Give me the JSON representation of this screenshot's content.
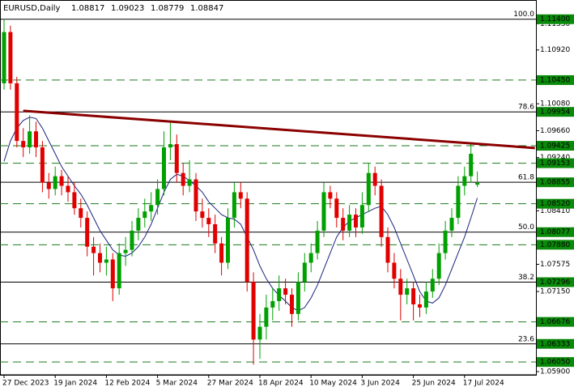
{
  "chart_data": {
    "type": "candlestick",
    "title": "EURUSD,Daily",
    "categories": [
      "27 Dec 2023",
      null,
      null,
      null,
      null,
      null,
      null,
      null,
      "19 Jan 2024",
      null,
      null,
      null,
      null,
      null,
      null,
      null,
      "12 Feb 2024",
      null,
      null,
      null,
      null,
      null,
      null,
      null,
      "5 Mar 2024",
      null,
      null,
      null,
      null,
      null,
      null,
      null,
      "27 Mar 2024",
      null,
      null,
      null,
      null,
      null,
      null,
      null,
      "18 Apr 2024",
      null,
      null,
      null,
      null,
      null,
      null,
      null,
      "10 May 2024",
      null,
      null,
      null,
      null,
      null,
      null,
      null,
      "3 Jun 2024",
      null,
      null,
      null,
      null,
      null,
      null,
      null,
      "25 Jun 2024",
      null,
      null,
      null,
      null,
      null,
      null,
      null,
      "17 Jul 2024",
      null,
      null
    ],
    "open": [
      1.104,
      1.112,
      1.104,
      1.095,
      1.094,
      1.0965,
      1.094,
      1.0885,
      1.0875,
      1.0895,
      1.088,
      1.087,
      1.0845,
      1.083,
      1.0785,
      1.0775,
      1.076,
      1.0765,
      1.072,
      1.0775,
      1.078,
      1.081,
      1.083,
      1.084,
      1.085,
      1.0875,
      1.094,
      1.0945,
      1.09,
      1.088,
      1.089,
      1.084,
      1.083,
      1.082,
      1.079,
      1.076,
      1.083,
      1.087,
      1.086,
      1.073,
      1.064,
      1.066,
      1.069,
      1.07,
      1.072,
      1.071,
      1.068,
      1.073,
      1.076,
      1.0775,
      1.081,
      1.087,
      1.086,
      1.083,
      1.081,
      1.0835,
      1.0815,
      1.085,
      1.09,
      1.088,
      1.08,
      1.076,
      1.0735,
      1.071,
      1.072,
      1.0695,
      1.069,
      1.0715,
      1.0735,
      1.0775,
      1.081,
      1.083,
      1.088,
      1.0895,
      1.08817
    ],
    "high": [
      1.114,
      1.113,
      1.105,
      1.097,
      1.099,
      1.098,
      1.095,
      1.09,
      1.091,
      1.0905,
      1.0895,
      1.0885,
      1.086,
      1.084,
      1.08,
      1.079,
      1.0785,
      1.0775,
      1.079,
      1.08,
      1.0825,
      1.0845,
      1.086,
      1.087,
      1.089,
      1.0965,
      1.098,
      1.096,
      1.0915,
      1.092,
      1.09,
      1.086,
      1.0845,
      1.0835,
      1.08,
      1.0845,
      1.0885,
      1.0885,
      1.087,
      1.0745,
      1.068,
      1.071,
      1.072,
      1.074,
      1.0735,
      1.072,
      1.0745,
      1.0775,
      1.079,
      1.0825,
      1.0885,
      1.088,
      1.087,
      1.0845,
      1.085,
      1.0845,
      1.087,
      1.0915,
      1.091,
      1.089,
      1.0815,
      1.0775,
      1.075,
      1.0735,
      1.073,
      1.071,
      1.073,
      1.075,
      1.079,
      1.0825,
      1.0845,
      1.0895,
      1.091,
      1.0945,
      1.09023
    ],
    "low": [
      1.103,
      1.103,
      1.094,
      1.0925,
      1.093,
      1.0925,
      1.087,
      1.086,
      1.0865,
      1.0865,
      1.0855,
      1.0835,
      1.0815,
      1.077,
      1.074,
      1.0745,
      1.074,
      1.07,
      1.071,
      1.0755,
      1.077,
      1.0795,
      1.0815,
      1.0825,
      1.0835,
      1.0865,
      1.092,
      1.0885,
      1.0865,
      1.087,
      1.0825,
      1.0815,
      1.08,
      1.0775,
      1.074,
      1.075,
      1.0815,
      1.0845,
      1.0715,
      1.0601,
      1.061,
      1.064,
      1.067,
      1.0685,
      1.0695,
      1.066,
      1.067,
      1.0715,
      1.0745,
      1.0765,
      1.08,
      1.0845,
      1.0815,
      1.0795,
      1.08,
      1.08,
      1.0805,
      1.084,
      1.0865,
      1.0785,
      1.0745,
      1.072,
      1.067,
      1.0695,
      1.067,
      1.0675,
      1.068,
      1.0705,
      1.0725,
      1.0765,
      1.08,
      1.082,
      1.0865,
      1.0885,
      1.08779
    ],
    "close": [
      1.112,
      1.104,
      1.095,
      1.094,
      1.0965,
      1.094,
      1.0885,
      1.0875,
      1.0895,
      1.088,
      1.087,
      1.0845,
      1.083,
      1.0785,
      1.0775,
      1.076,
      1.0765,
      1.072,
      1.0775,
      1.078,
      1.081,
      1.083,
      1.084,
      1.085,
      1.0875,
      1.094,
      1.0945,
      1.09,
      1.088,
      1.089,
      1.084,
      1.083,
      1.082,
      1.079,
      1.076,
      1.083,
      1.087,
      1.086,
      1.073,
      1.064,
      1.066,
      1.069,
      1.07,
      1.072,
      1.071,
      1.068,
      1.073,
      1.076,
      1.0775,
      1.081,
      1.087,
      1.086,
      1.083,
      1.081,
      1.0835,
      1.0815,
      1.085,
      1.09,
      1.088,
      1.08,
      1.076,
      1.0735,
      1.071,
      1.072,
      1.0695,
      1.069,
      1.0715,
      1.0735,
      1.0775,
      1.081,
      1.083,
      1.088,
      1.0895,
      1.093,
      1.08847
    ],
    "up_color": "#00a000",
    "down_color": "#e00000",
    "ma": {
      "color": "#1a237e",
      "values": [
        1.0918,
        1.095,
        1.097,
        1.0982,
        1.0987,
        1.0985,
        1.097,
        1.095,
        1.093,
        1.091,
        1.0895,
        1.088,
        1.0867,
        1.085,
        1.083,
        1.081,
        1.0795,
        1.078,
        1.0772,
        1.077,
        1.0775,
        1.0785,
        1.08,
        1.082,
        1.0845,
        1.087,
        1.089,
        1.0898,
        1.0895,
        1.0888,
        1.088,
        1.087,
        1.0855,
        1.0845,
        1.0835,
        1.083,
        1.0828,
        1.082,
        1.08,
        1.078,
        1.0755,
        1.0735,
        1.072,
        1.0709,
        1.07,
        1.069,
        1.0685,
        1.069,
        1.0705,
        1.0725,
        1.075,
        1.0775,
        1.08,
        1.0815,
        1.0825,
        1.083,
        1.0835,
        1.084,
        1.0845,
        1.0848,
        1.0835,
        1.0815,
        1.079,
        1.0765,
        1.074,
        1.0715,
        1.07,
        1.0697,
        1.0705,
        1.0725,
        1.075,
        1.0775,
        1.08,
        1.083,
        1.0861
      ]
    },
    "trendline": {
      "color": "#8b0000",
      "x": [
        3,
        83
      ],
      "prices": [
        1.0997,
        1.0939
      ]
    },
    "levels": {
      "color": "#1e7a1e",
      "prices": [
        {
          "value": 1.1045,
          "label": "1.10450"
        },
        {
          "value": 1.09425,
          "label": "1.09425"
        },
        {
          "value": 1.09153,
          "label": "1.09153"
        },
        {
          "value": 1.0852,
          "label": "1.08520"
        },
        {
          "value": 1.0788,
          "label": "1.07880"
        },
        {
          "value": 1.06676,
          "label": "1.06676"
        },
        {
          "value": 1.0605,
          "label": "1.06050"
        }
      ]
    },
    "fib_levels": [
      {
        "ratio": {
          "value": 100,
          "label": "100.0"
        },
        "price": {
          "value": 1.114,
          "label": "1.11400"
        }
      },
      {
        "ratio": 78.6,
        "price": {
          "value": 1.09954,
          "label": "1.09954"
        }
      },
      {
        "ratio": 61.8,
        "price": {
          "value": 1.08855,
          "label": "1.08855"
        }
      },
      {
        "ratio": {
          "value": 50,
          "label": "50.0"
        },
        "price": {
          "value": 1.08077,
          "label": "1.08077"
        }
      },
      {
        "ratio": 38.2,
        "price": {
          "value": 1.07296,
          "label": "1.07296"
        }
      },
      {
        "ratio": 23.6,
        "price": {
          "value": 1.06333,
          "label": "1.06333"
        }
      }
    ],
    "ylim": [
      1.0585,
      1.117
    ],
    "yticks": [
      {
        "value": 1.1133,
        "label": "1.11330"
      },
      {
        "value": 1.1092,
        "label": "1.10920"
      },
      {
        "value": 1.1008,
        "label": "1.10080"
      },
      {
        "value": 1.0966,
        "label": "1.09660"
      },
      {
        "value": 1.0924,
        "label": "1.09240"
      },
      {
        "value": 1.0841,
        "label": "1.08410"
      },
      {
        "value": 1.07575,
        "label": "1.07575"
      },
      {
        "value": 1.0715,
        "label": "1.07150"
      },
      {
        "value": 1.059,
        "label": "1.05900"
      }
    ]
  }
}
